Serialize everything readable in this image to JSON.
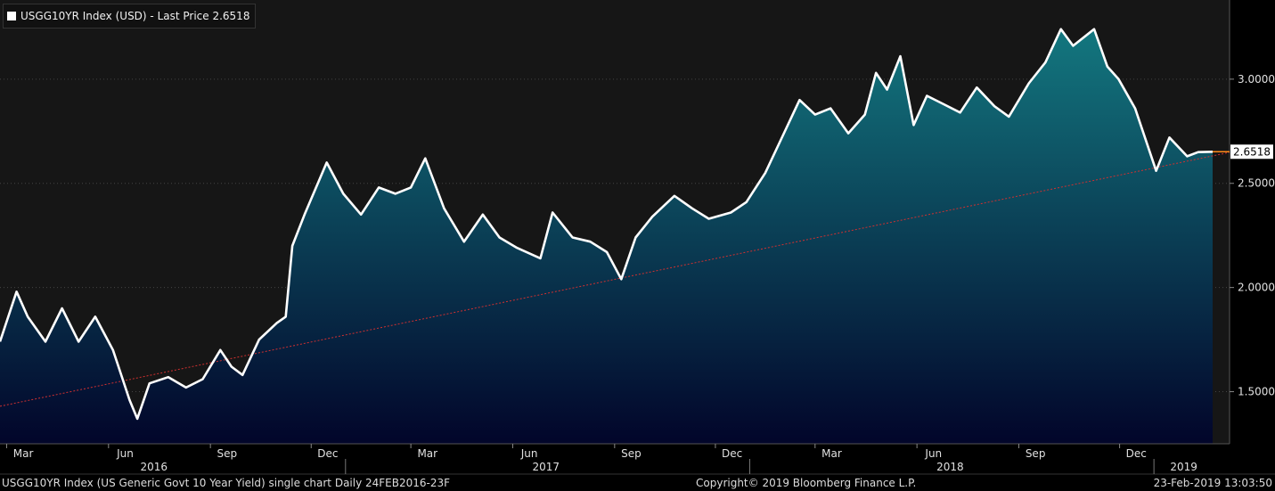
{
  "colors": {
    "background": "#000000",
    "plot_background": "#161616",
    "line": "#ffffff",
    "fill_top": "#13777f",
    "fill_bottom": "#02052a",
    "trendline": "#d03030",
    "last_price_marker": "#ff8a1a"
  },
  "legend": {
    "text": "USGG10YR Index (USD) - Last Price 2.6518"
  },
  "price_label": "2.6518",
  "footer": {
    "left": "USGG10YR Index (US Generic Govt 10 Year Yield) single chart  Daily 24FEB2016-23F",
    "center": "Copyright© 2019 Bloomberg Finance L.P.",
    "right": "23-Feb-2019 13:03:50"
  },
  "chart_data": {
    "type": "area",
    "x_ticks": [
      "Mar",
      "Jun",
      "Sep",
      "Dec",
      "Mar",
      "Jun",
      "Sep",
      "Dec",
      "Mar",
      "Jun",
      "Sep",
      "Dec"
    ],
    "year_labels": [
      "2016",
      "2017",
      "2018",
      "2019"
    ],
    "y_ticks": [
      "3.0000",
      "2.5000",
      "2.0000",
      "1.5000"
    ],
    "y_tick_values": [
      3.0,
      2.5,
      2.0,
      1.5
    ],
    "ylim": [
      1.25,
      3.38
    ],
    "last_price": 2.6518,
    "trendline": {
      "start": [
        "2016-02-24",
        1.43
      ],
      "end": [
        "2019-02-23",
        2.64
      ]
    },
    "x": [
      "2016-02-24",
      "2016-03-10",
      "2016-03-20",
      "2016-04-05",
      "2016-04-20",
      "2016-05-05",
      "2016-05-20",
      "2016-06-05",
      "2016-06-20",
      "2016-06-27",
      "2016-07-08",
      "2016-07-25",
      "2016-08-10",
      "2016-08-25",
      "2016-09-10",
      "2016-09-20",
      "2016-09-30",
      "2016-10-15",
      "2016-10-31",
      "2016-11-08",
      "2016-11-14",
      "2016-11-25",
      "2016-12-15",
      "2016-12-30",
      "2017-01-15",
      "2017-01-31",
      "2017-02-15",
      "2017-03-01",
      "2017-03-14",
      "2017-03-31",
      "2017-04-18",
      "2017-05-05",
      "2017-05-20",
      "2017-06-05",
      "2017-06-26",
      "2017-07-07",
      "2017-07-25",
      "2017-08-10",
      "2017-08-25",
      "2017-09-07",
      "2017-09-20",
      "2017-10-05",
      "2017-10-25",
      "2017-11-10",
      "2017-11-25",
      "2017-12-15",
      "2017-12-29",
      "2018-01-15",
      "2018-01-31",
      "2018-02-15",
      "2018-03-01",
      "2018-03-15",
      "2018-03-31",
      "2018-04-15",
      "2018-04-25",
      "2018-05-05",
      "2018-05-17",
      "2018-05-29",
      "2018-06-10",
      "2018-06-25",
      "2018-07-10",
      "2018-07-25",
      "2018-08-10",
      "2018-08-23",
      "2018-09-10",
      "2018-09-25",
      "2018-10-09",
      "2018-10-20",
      "2018-11-08",
      "2018-11-20",
      "2018-11-30",
      "2018-12-15",
      "2019-01-03",
      "2019-01-15",
      "2019-01-31",
      "2019-02-10",
      "2019-02-23"
    ],
    "values": [
      1.74,
      1.98,
      1.86,
      1.74,
      1.9,
      1.74,
      1.86,
      1.7,
      1.46,
      1.37,
      1.54,
      1.57,
      1.52,
      1.56,
      1.7,
      1.62,
      1.58,
      1.75,
      1.83,
      1.86,
      2.2,
      2.35,
      2.6,
      2.45,
      2.35,
      2.48,
      2.45,
      2.48,
      2.62,
      2.38,
      2.22,
      2.35,
      2.24,
      2.19,
      2.14,
      2.36,
      2.24,
      2.22,
      2.17,
      2.04,
      2.24,
      2.34,
      2.44,
      2.38,
      2.33,
      2.36,
      2.41,
      2.55,
      2.73,
      2.9,
      2.83,
      2.86,
      2.74,
      2.83,
      3.03,
      2.95,
      3.11,
      2.78,
      2.92,
      2.88,
      2.84,
      2.96,
      2.87,
      2.82,
      2.98,
      3.08,
      3.24,
      3.16,
      3.24,
      3.06,
      3.0,
      2.86,
      2.56,
      2.72,
      2.63,
      2.65,
      2.6518
    ]
  }
}
